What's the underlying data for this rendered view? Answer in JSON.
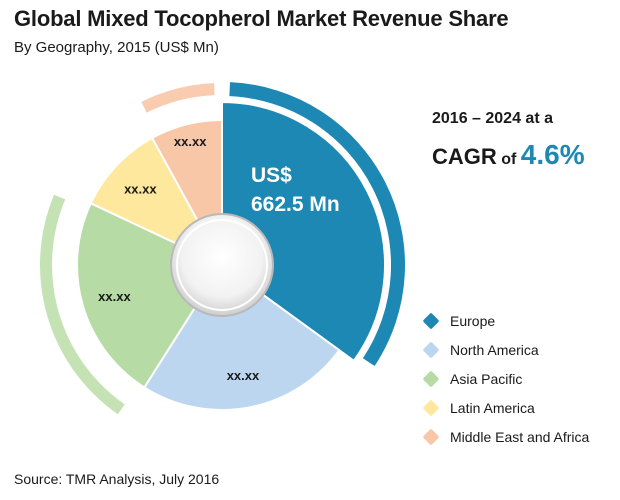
{
  "title": "Global Mixed Tocopherol Market Revenue Share",
  "subtitle": "By Geography, 2015 (US$ Mn)",
  "cagr": {
    "period": "2016 – 2024 at a",
    "prefix": "CAGR",
    "of": "of",
    "value": "4.6%"
  },
  "source": "Source: TMR Analysis, July 2016",
  "chart_data": {
    "type": "pie",
    "variant": "donut",
    "title": "Global Mixed Tocopherol Market Revenue Share",
    "subtitle": "By Geography, 2015 (US$ Mn)",
    "categories": [
      "Europe",
      "North America",
      "Asia Pacific",
      "Latin America",
      "Middle East and Africa"
    ],
    "shares": [
      35,
      24,
      23,
      10,
      8
    ],
    "slice_labels": [
      "US$ 662.5 Mn",
      "xx.xx",
      "xx.xx",
      "xx.xx",
      "xx.xx"
    ],
    "colors": [
      "#1e88b4",
      "#bcd6ef",
      "#b6dba4",
      "#fde89d",
      "#f7c7a8"
    ],
    "outer_arc_colors": [
      "#1e88b4",
      null,
      "#c4e2b4",
      null,
      "#f9ccb0"
    ],
    "legend_position": "right"
  }
}
